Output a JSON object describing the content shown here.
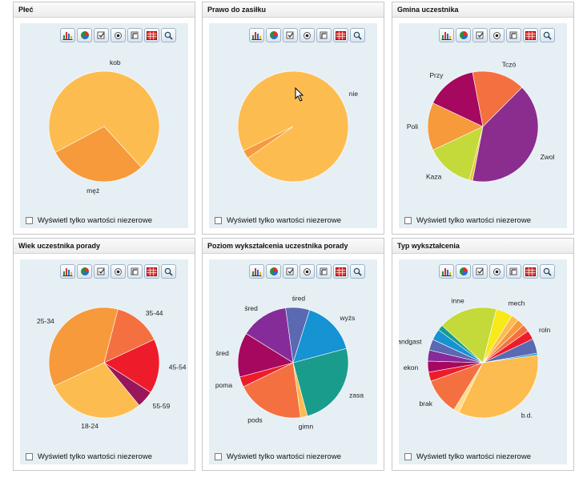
{
  "filter_label": "Wyświetl tylko wartości niezerowe",
  "toolbar_buttons": [
    {
      "name": "bar-chart-icon"
    },
    {
      "name": "pie-chart-icon"
    },
    {
      "name": "checkbox-flag-icon"
    },
    {
      "name": "radio-icon"
    },
    {
      "name": "flag-icon"
    },
    {
      "name": "table-grid-icon"
    },
    {
      "name": "zoom-icon"
    }
  ],
  "colors": {
    "panel_bg": "#e6eff4",
    "toolbar_border": "#9fb3c8"
  },
  "chart_data": [
    {
      "type": "pie",
      "title": "Płeć",
      "slices": [
        {
          "label": "kob",
          "value": 71,
          "color": "#fdbc4f"
        },
        {
          "label": "męż",
          "value": 29,
          "color": "#f69a3c"
        }
      ]
    },
    {
      "type": "pie",
      "title": "Prawo do zasiłku",
      "slices": [
        {
          "label": "nie",
          "value": 97.5,
          "color": "#fdbc4f"
        },
        {
          "label": "",
          "value": 2.5,
          "color": "#f69a3c"
        }
      ]
    },
    {
      "type": "pie",
      "title": "Gmina uczestnika",
      "slices": [
        {
          "label": "Zwol",
          "value": 40.5,
          "color": "#8b2c8f"
        },
        {
          "label": "",
          "value": 1,
          "color": "#e7c73b"
        },
        {
          "label": "Kaza",
          "value": 14,
          "color": "#c3da3a"
        },
        {
          "label": "Poli",
          "value": 14,
          "color": "#f69a3c"
        },
        {
          "label": "Przy",
          "value": 15,
          "color": "#a5085e"
        },
        {
          "label": "Tczó",
          "value": 15.5,
          "color": "#f47041"
        }
      ]
    },
    {
      "type": "pie",
      "title": "Wiek uczestnika porady",
      "slices": [
        {
          "label": "45-54",
          "value": 16,
          "color": "#ee1c2a"
        },
        {
          "label": "55-59",
          "value": 5,
          "color": "#99165b"
        },
        {
          "label": "18-24",
          "value": 29,
          "color": "#fdbc4f"
        },
        {
          "label": "25-34",
          "value": 36,
          "color": "#f69a3c"
        },
        {
          "label": "35-44",
          "value": 14,
          "color": "#f47041"
        }
      ]
    },
    {
      "type": "pie",
      "title": "Poziom wykształcenia uczestnika porady",
      "slices": [
        {
          "label": "zasa",
          "value": 25,
          "color": "#1a9c8c"
        },
        {
          "label": "gimn",
          "value": 2,
          "color": "#fdbc4f"
        },
        {
          "label": "pods",
          "value": 20,
          "color": "#f47041"
        },
        {
          "label": "poma",
          "value": 3,
          "color": "#ee1c2a"
        },
        {
          "label": "śred",
          "value": 13,
          "color": "#a5085e"
        },
        {
          "label": "śred",
          "value": 14,
          "color": "#852c9a"
        },
        {
          "label": "śred",
          "value": 7,
          "color": "#5b68b2"
        },
        {
          "label": "wyżs",
          "value": 16,
          "color": "#1593d3"
        }
      ]
    },
    {
      "type": "pie",
      "title": "Typ wykształcenia",
      "slices": [
        {
          "label": "b.d.",
          "value": 32,
          "color": "#fdbc4f"
        },
        {
          "label": "",
          "value": 1.5,
          "color": "#fedc8a"
        },
        {
          "label": "brak",
          "value": 10,
          "color": "#f47041"
        },
        {
          "label": "",
          "value": 2.5,
          "color": "#ee1c2a"
        },
        {
          "label": "ekon",
          "value": 3,
          "color": "#a5085e"
        },
        {
          "label": "",
          "value": 3,
          "color": "#852c9a"
        },
        {
          "label": "handgast",
          "value": 3,
          "color": "#5b68b2"
        },
        {
          "label": "",
          "value": 3,
          "color": "#1593d3"
        },
        {
          "label": "",
          "value": 1.5,
          "color": "#1a9c8c"
        },
        {
          "label": "inne",
          "value": 16,
          "color": "#c3da3a"
        },
        {
          "label": "mech",
          "value": 4.5,
          "color": "#f7e91a"
        },
        {
          "label": "",
          "value": 2,
          "color": "#fdbc4f"
        },
        {
          "label": "",
          "value": 2,
          "color": "#f69a3c"
        },
        {
          "label": "",
          "value": 2,
          "color": "#f47041"
        },
        {
          "label": "roln",
          "value": 2.5,
          "color": "#ee1c2a"
        },
        {
          "label": "",
          "value": 4,
          "color": "#5b68b2"
        },
        {
          "label": "",
          "value": 0.5,
          "color": "#1593d3"
        }
      ]
    }
  ]
}
